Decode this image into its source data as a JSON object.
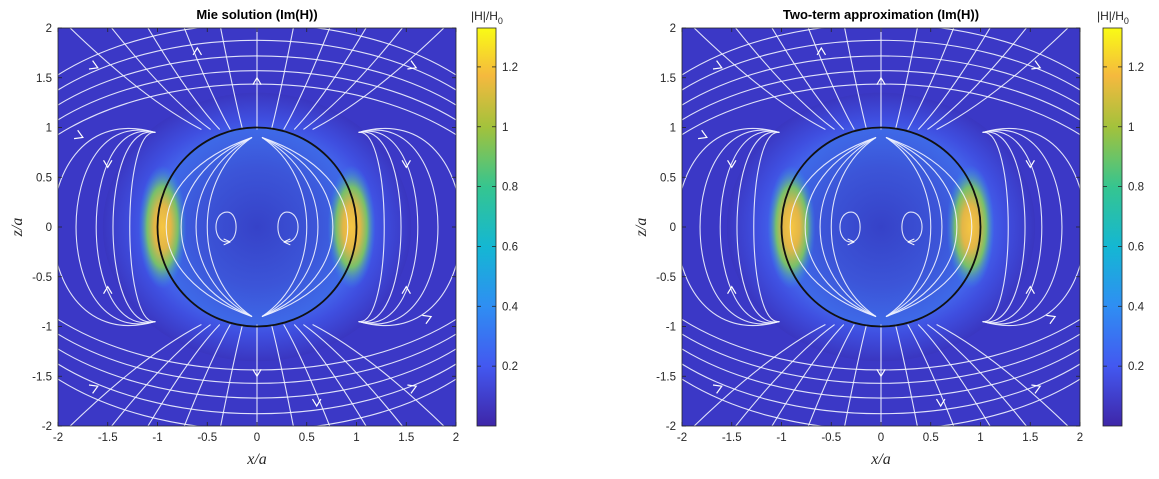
{
  "chart_data": [
    {
      "type": "heatmap",
      "title": "Mie solution (Im(H))",
      "xlabel": "x/a",
      "ylabel": "z/a",
      "xlim": [
        -2,
        2
      ],
      "ylim": [
        -2,
        2
      ],
      "xticks": [
        "-2",
        "-1.5",
        "-1",
        "-0.5",
        "0",
        "0.5",
        "1",
        "1.5",
        "2"
      ],
      "yticks": [
        "2",
        "1.5",
        "1",
        "0.5",
        "0",
        "-0.5",
        "-1",
        "-1.5",
        "-2"
      ],
      "overlay": "white streamlines with arrows; black unit circle at r = 1",
      "field_peak_at_x": 0.95,
      "colorbar": {
        "label_main": "|H|/H",
        "label_sub": "0",
        "range": [
          0,
          1.33
        ],
        "ticks": [
          "1.2",
          "1",
          "0.8",
          "0.6",
          "0.4",
          "0.2"
        ],
        "colormap": "parula"
      }
    },
    {
      "type": "heatmap",
      "title": "Two-term approximation (Im(H))",
      "xlabel": "x/a",
      "ylabel": "z/a",
      "xlim": [
        -2,
        2
      ],
      "ylim": [
        -2,
        2
      ],
      "xticks": [
        "-2",
        "-1.5",
        "-1",
        "-0.5",
        "0",
        "0.5",
        "1",
        "1.5",
        "2"
      ],
      "yticks": [
        "2",
        "1.5",
        "1",
        "0.5",
        "0",
        "-0.5",
        "-1",
        "-1.5",
        "-2"
      ],
      "overlay": "white streamlines with arrows; black unit circle at r = 1",
      "field_peak_at_x": 0.9,
      "colorbar": {
        "label_main": "|H|/H",
        "label_sub": "0",
        "range": [
          0,
          1.33
        ],
        "ticks": [
          "1.2",
          "1",
          "0.8",
          "0.6",
          "0.4",
          "0.2"
        ],
        "colormap": "parula"
      }
    }
  ]
}
